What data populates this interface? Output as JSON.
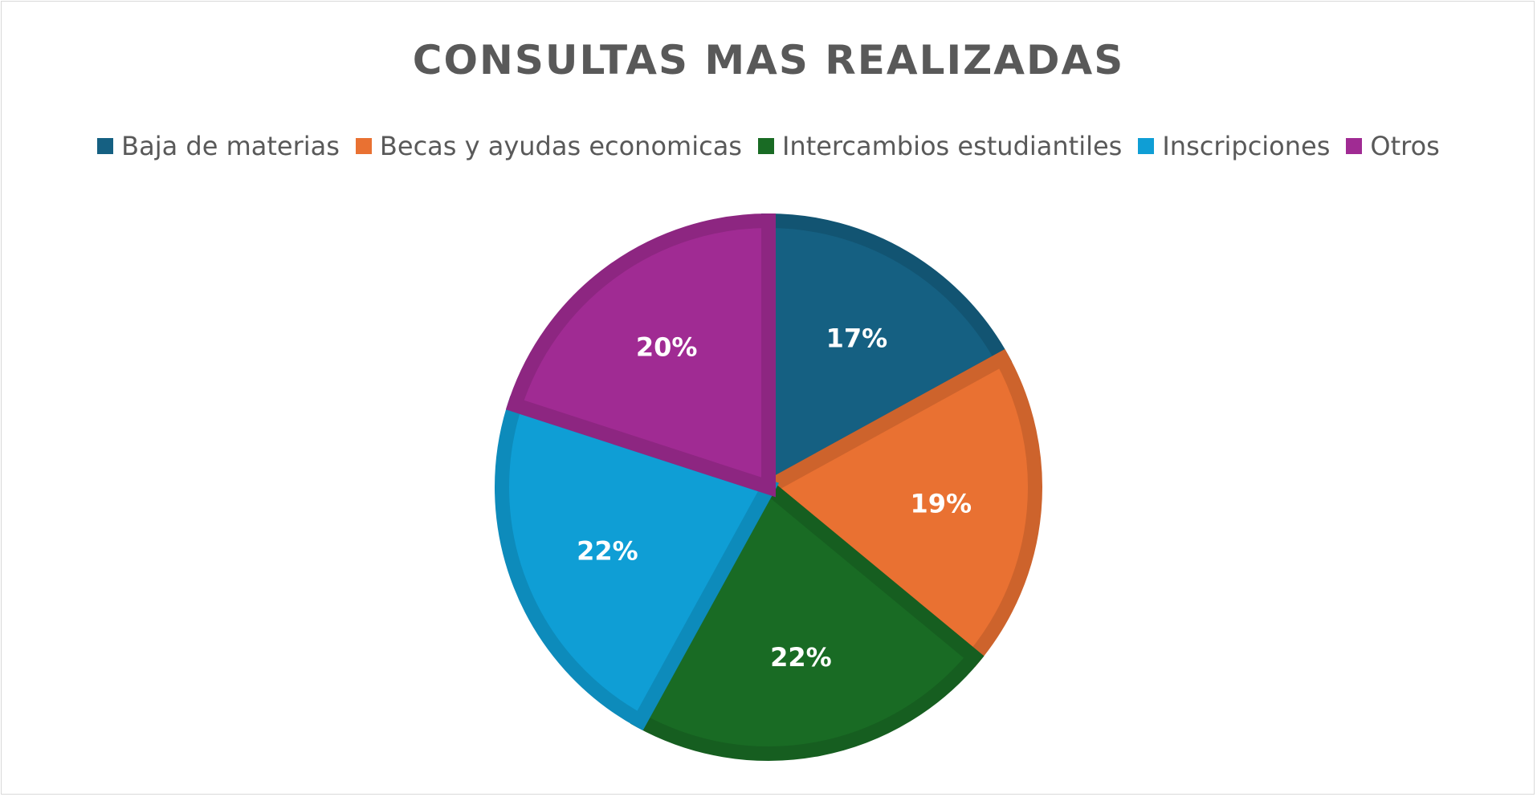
{
  "chart_data": {
    "type": "pie",
    "title": "CONSULTAS MAS REALIZADAS",
    "legend_position": "top",
    "categories": [
      "Baja de materias",
      "Becas y ayudas economicas",
      "Intercambios estudiantiles",
      "Inscripciones",
      "Otros"
    ],
    "values": [
      17,
      19,
      22,
      22,
      20
    ],
    "labels": [
      "17%",
      "19%",
      "22%",
      "22%",
      "20%"
    ],
    "colors": [
      "#156082",
      "#E97132",
      "#196B24",
      "#0F9ED5",
      "#A02B93"
    ]
  }
}
